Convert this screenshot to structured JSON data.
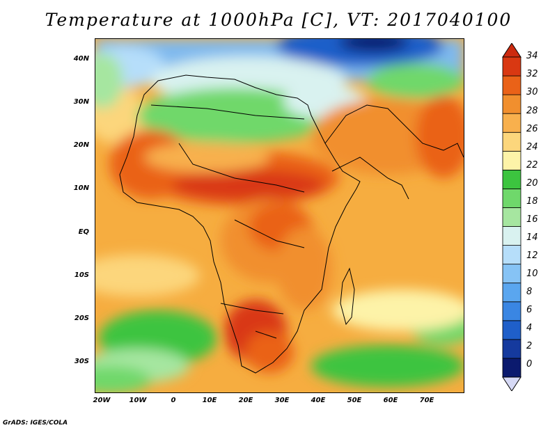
{
  "title": "Temperature at 1000hPa [C], VT: 2017040100",
  "credit": "GrADS: IGES/COLA",
  "map": {
    "lat_labels": [
      "40N",
      "30N",
      "20N",
      "10N",
      "EQ",
      "10S",
      "20S",
      "30S"
    ],
    "lon_labels": [
      "20W",
      "10W",
      "0",
      "10E",
      "20E",
      "30E",
      "40E",
      "50E",
      "60E",
      "70E"
    ],
    "extent_lon": [
      -22,
      80
    ],
    "extent_lat": [
      -37,
      45
    ]
  },
  "colorbar": {
    "labels": [
      "34",
      "32",
      "30",
      "28",
      "26",
      "24",
      "22",
      "20",
      "18",
      "16",
      "14",
      "12",
      "10",
      "8",
      "6",
      "4",
      "2",
      "0"
    ],
    "colors_low_to_high": [
      "#0b1a6e",
      "#153a9e",
      "#1f5fc9",
      "#3a86e3",
      "#5aa6ef",
      "#86c3f5",
      "#b6defa",
      "#d9f2f0",
      "#a6e6a0",
      "#6fd86b",
      "#3cc43f",
      "#fdf3a8",
      "#fcd67c",
      "#f8b04d",
      "#f18f2e",
      "#ea6218",
      "#d93812"
    ],
    "over_color": "#cc2a0f",
    "under_color": "#d6d9f5"
  }
}
